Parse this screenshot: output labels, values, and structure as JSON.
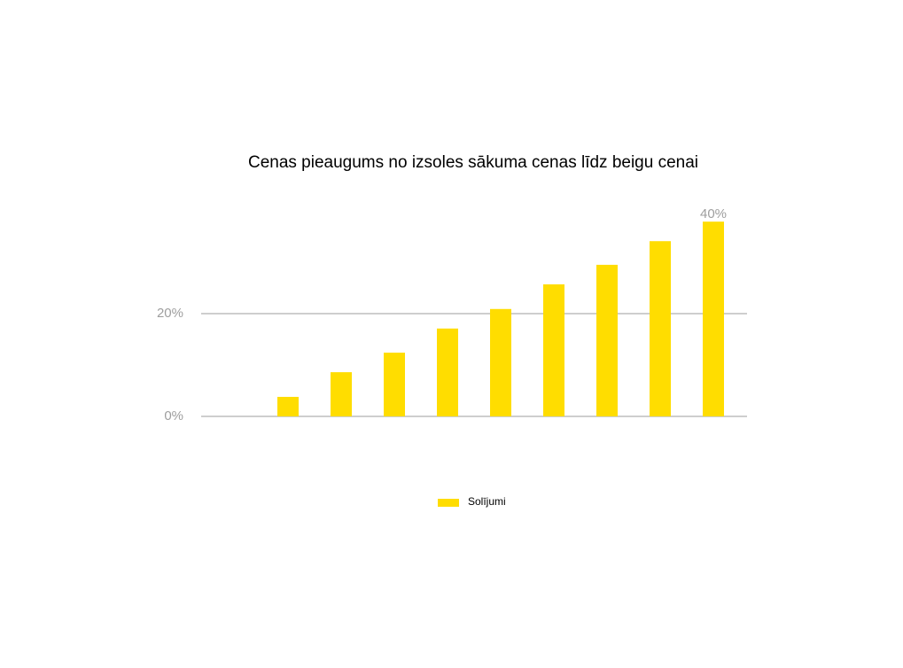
{
  "chart_data": {
    "type": "bar",
    "title": "Cenas pieaugums no izsoles sākuma cenas līdz beigu cenai",
    "categories": [
      null,
      null,
      null,
      null,
      null,
      null,
      null,
      null,
      null,
      null
    ],
    "series": [
      {
        "name": "Solījumi",
        "color": "#ffdd00",
        "values": [
          0,
          3.8,
          8.6,
          12.4,
          17.1,
          20.9,
          25.7,
          29.5,
          34.1,
          37.9
        ]
      }
    ],
    "annotation": "40%",
    "ylim": [
      0,
      40
    ],
    "yticks": [
      {
        "value": 0,
        "label": "0%"
      },
      {
        "value": 20,
        "label": "20%"
      }
    ],
    "grid": true,
    "legend": "bottom"
  }
}
